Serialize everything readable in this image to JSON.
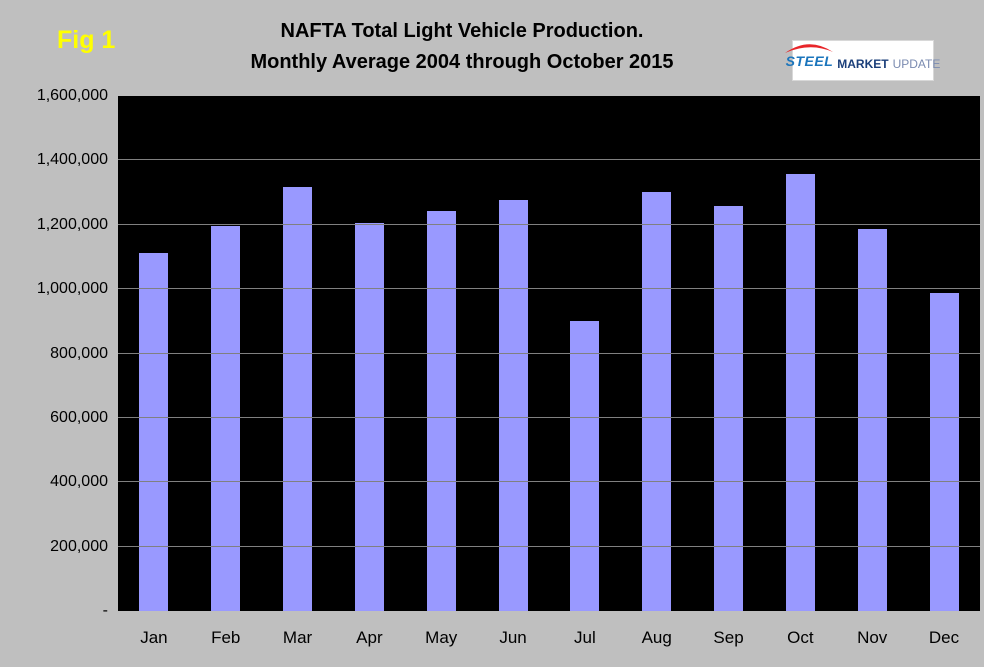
{
  "header": {
    "fig_label": "Fig 1",
    "title_line1": "NAFTA Total Light Vehicle Production.",
    "title_line2": "Monthly Average 2004 through October 2015",
    "logo": {
      "word1": "STEEL",
      "word2": "MARKET",
      "word3": "UPDATE"
    }
  },
  "colors": {
    "background": "#BFBFBF",
    "plot_background": "#000000",
    "bar_fill": "#9999FF",
    "gridline": "#808080",
    "fig_label": "#FFFF00",
    "title_text": "#000000",
    "logo_steel": "#1B75BC",
    "logo_market": "#1B3F7A",
    "logo_update": "#7A8BB0",
    "logo_swoosh": "#E8262A"
  },
  "chart_data": {
    "type": "bar",
    "title": "NAFTA Total Light Vehicle Production. Monthly Average 2004 through October 2015",
    "xlabel": "",
    "ylabel": "",
    "categories": [
      "Jan",
      "Feb",
      "Mar",
      "Apr",
      "May",
      "Jun",
      "Jul",
      "Aug",
      "Sep",
      "Oct",
      "Nov",
      "Dec"
    ],
    "values": [
      1115000,
      1200000,
      1320000,
      1210000,
      1245000,
      1280000,
      905000,
      1305000,
      1260000,
      1360000,
      1190000,
      990000
    ],
    "ylim": [
      0,
      1600000
    ],
    "ytick_interval": 200000,
    "yticks": [
      {
        "value": 1600000,
        "label": "1,600,000"
      },
      {
        "value": 1400000,
        "label": "1,400,000"
      },
      {
        "value": 1200000,
        "label": "1,200,000"
      },
      {
        "value": 1000000,
        "label": "1,000,000"
      },
      {
        "value": 800000,
        "label": "800,000"
      },
      {
        "value": 600000,
        "label": "600,000"
      },
      {
        "value": 400000,
        "label": "400,000"
      },
      {
        "value": 200000,
        "label": "200,000"
      },
      {
        "value": 0,
        "label": "-"
      }
    ],
    "grid": true,
    "legend": false,
    "plot_style": "black-background-excel"
  }
}
